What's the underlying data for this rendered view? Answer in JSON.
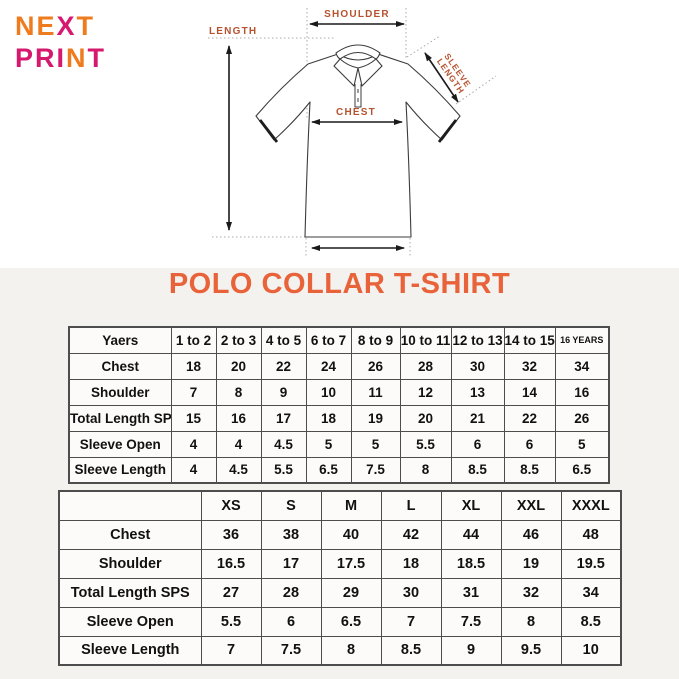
{
  "logo": {
    "line1": "NEXT",
    "line1_colors": [
      "#ee7c1f",
      "#ee7c1f",
      "#d6186e",
      "#ee7c1f"
    ],
    "line2": "PRINT",
    "line2_colors": [
      "#d6186e",
      "#d6186e",
      "#d6186e",
      "#ee7c1f",
      "#d6186e"
    ],
    "orange": "#ee7c1f",
    "magenta": "#d6186e"
  },
  "diagram": {
    "labels": {
      "shoulder": "SHOULDER",
      "length": "LENGTH",
      "chest": "CHEST",
      "sleeve_line1": "SLEEVE",
      "sleeve_line2": "LENGTH"
    },
    "label_color": "#b5532f"
  },
  "title": {
    "text": "POLO COLLAR T-SHIRT",
    "color": "#e8623a"
  },
  "size_chart_years": {
    "header": [
      "Yaers",
      "1 to 2",
      "2 to 3",
      "4 to 5",
      "6 to 7",
      "8 to 9",
      "10 to 11",
      "12 to 13",
      "14 to 15",
      "16 YEARS"
    ],
    "rows": [
      {
        "label": "Chest",
        "values": [
          18,
          20,
          22,
          24,
          26,
          28,
          30,
          32,
          34
        ]
      },
      {
        "label": "Shoulder",
        "values": [
          7,
          8,
          9,
          10,
          11,
          12,
          13,
          14,
          16
        ]
      },
      {
        "label": "Total Length SPS",
        "values": [
          15,
          16,
          17,
          18,
          19,
          20,
          21,
          22,
          26
        ]
      },
      {
        "label": "Sleeve Open",
        "values": [
          4,
          4,
          4.5,
          5,
          5,
          5.5,
          6,
          6,
          5
        ]
      },
      {
        "label": "Sleeve Length",
        "values": [
          4,
          4.5,
          5.5,
          6.5,
          7.5,
          8,
          8.5,
          8.5,
          6.5
        ]
      }
    ]
  },
  "size_chart_adult": {
    "header": [
      "",
      "XS",
      "S",
      "M",
      "L",
      "XL",
      "XXL",
      "XXXL"
    ],
    "rows": [
      {
        "label": "Chest",
        "values": [
          36,
          38,
          40,
          42,
          44,
          46,
          48
        ]
      },
      {
        "label": "Shoulder",
        "values": [
          16.5,
          17,
          17.5,
          18,
          18.5,
          19,
          19.5
        ]
      },
      {
        "label": "Total Length SPS",
        "values": [
          27,
          28,
          29,
          30,
          31,
          32,
          34
        ]
      },
      {
        "label": "Sleeve Open",
        "values": [
          5.5,
          6,
          6.5,
          7,
          7.5,
          8,
          8.5
        ]
      },
      {
        "label": "Sleeve Length",
        "values": [
          7,
          7.5,
          8,
          8.5,
          9,
          9.5,
          10
        ]
      }
    ]
  }
}
